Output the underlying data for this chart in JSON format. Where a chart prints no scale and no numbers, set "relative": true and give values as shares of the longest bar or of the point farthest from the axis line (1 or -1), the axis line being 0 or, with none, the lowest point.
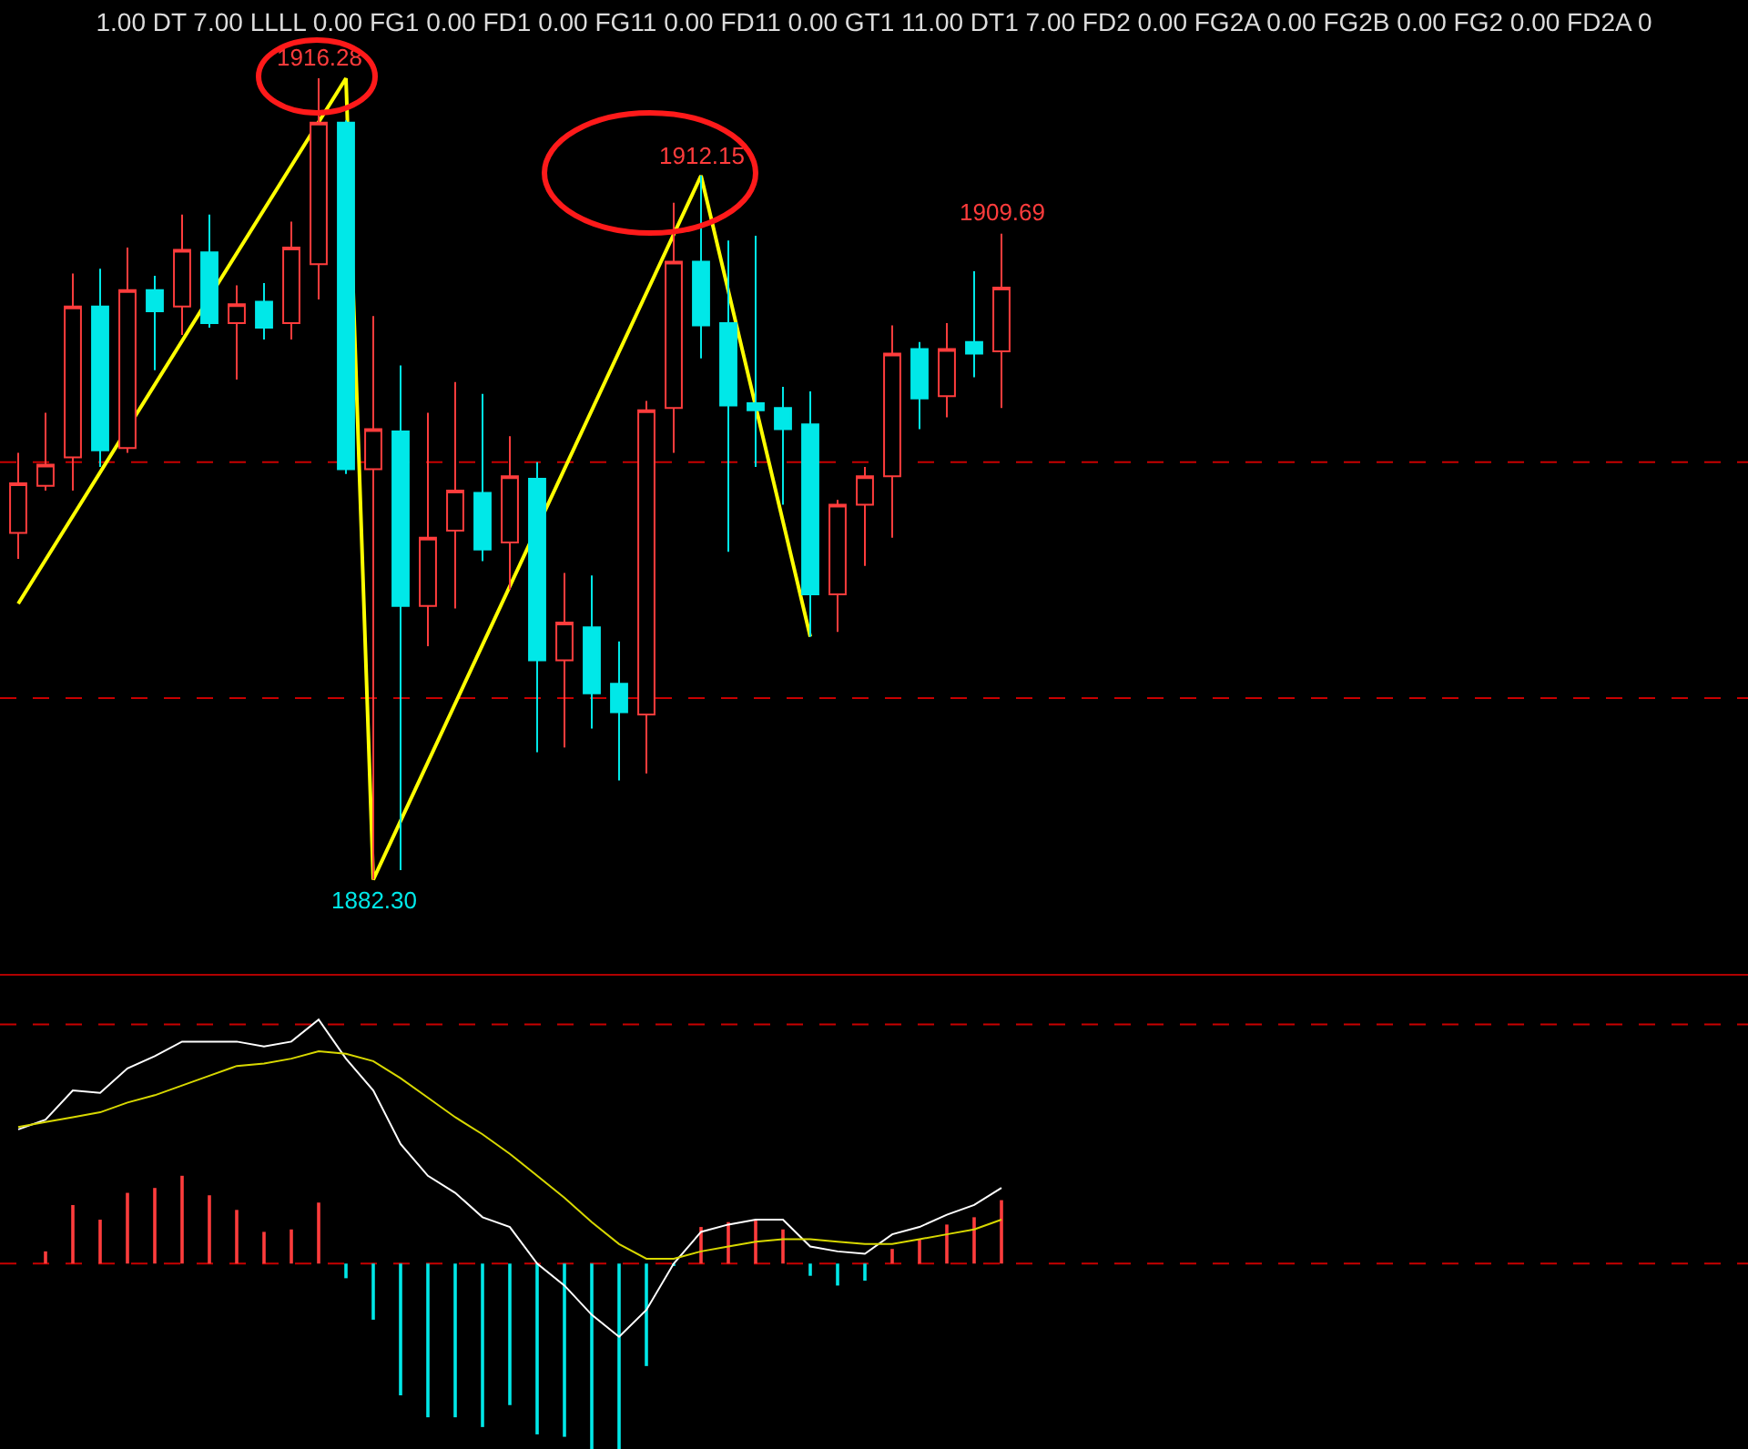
{
  "chart_data": [
    {
      "type": "candlestick",
      "title": "1.00 DT 7.00 LLLL 0.00 FG1 0.00 FD1 0.00 FG11 0.00 FD11 0.00 GT1 11.00 DT1 7.00 FD2 0.00 FG2A 0.00 FG2B 0.00 FG2 0.00 FD2A 0",
      "categories": [
        null,
        null,
        null,
        null,
        null,
        null,
        null,
        null,
        null,
        null,
        null,
        null,
        null,
        null,
        null,
        null,
        null,
        null,
        null,
        null,
        null,
        null,
        null,
        null,
        null,
        null,
        null,
        null,
        null,
        null,
        null,
        null,
        null,
        null,
        null,
        null,
        null
      ],
      "ohlc": [
        [
          1897.0,
          1900.4,
          1895.9,
          1899.1
        ],
        [
          1899.0,
          1902.1,
          1898.8,
          1899.9
        ],
        [
          1900.2,
          1908.0,
          1898.8,
          1906.6
        ],
        [
          1906.6,
          1908.2,
          1899.8,
          1900.5
        ],
        [
          1900.6,
          1909.1,
          1900.4,
          1907.3
        ],
        [
          1907.3,
          1907.9,
          1903.9,
          1906.4
        ],
        [
          1906.6,
          1910.5,
          1905.4,
          1909.0
        ],
        [
          1908.9,
          1910.5,
          1905.7,
          1905.9
        ],
        [
          1905.9,
          1907.5,
          1903.5,
          1906.7
        ],
        [
          1906.8,
          1907.6,
          1905.2,
          1905.7
        ],
        [
          1905.9,
          1910.2,
          1905.2,
          1909.1
        ],
        [
          1908.4,
          1916.28,
          1906.9,
          1914.4
        ],
        [
          1914.4,
          1914.5,
          1899.5,
          1899.7
        ],
        [
          1899.7,
          1906.2,
          1882.3,
          1901.4
        ],
        [
          1901.3,
          1904.1,
          1882.7,
          1893.9
        ],
        [
          1893.9,
          1902.1,
          1892.2,
          1896.8
        ],
        [
          1897.1,
          1903.4,
          1893.8,
          1898.8
        ],
        [
          1898.7,
          1902.9,
          1895.8,
          1896.3
        ],
        [
          1896.6,
          1901.1,
          1894.6,
          1899.4
        ],
        [
          1899.3,
          1900.0,
          1887.7,
          1891.6
        ],
        [
          1891.6,
          1895.3,
          1887.9,
          1893.2
        ],
        [
          1893.0,
          1895.2,
          1888.7,
          1890.2
        ],
        [
          1890.6,
          1892.4,
          1886.5,
          1889.4
        ],
        [
          1889.3,
          1902.6,
          1886.8,
          1902.2
        ],
        [
          1902.3,
          1911.0,
          1900.4,
          1908.5
        ],
        [
          1908.5,
          1912.15,
          1904.4,
          1905.8
        ],
        [
          1905.9,
          1909.4,
          1896.2,
          1902.4
        ],
        [
          1902.5,
          1909.6,
          1899.8,
          1902.2
        ],
        [
          1902.3,
          1903.2,
          1898.2,
          1901.4
        ],
        [
          1901.6,
          1903.0,
          1892.6,
          1894.4
        ],
        [
          1894.4,
          1898.4,
          1892.8,
          1898.2
        ],
        [
          1898.2,
          1899.8,
          1895.6,
          1899.4
        ],
        [
          1899.4,
          1905.8,
          1896.8,
          1904.6
        ],
        [
          1904.8,
          1905.1,
          1901.4,
          1902.7
        ],
        [
          1902.8,
          1905.9,
          1901.9,
          1904.8
        ],
        [
          1905.1,
          1908.1,
          1903.6,
          1904.6
        ],
        [
          1904.7,
          1909.69,
          1902.3,
          1907.4
        ]
      ],
      "colors": [
        "#ff3c3c",
        "#ff3c3c",
        "#ff3c3c",
        "#00e8e8",
        "#ff3c3c",
        "#00e8e8",
        "#ff3c3c",
        "#00e8e8",
        "#ff3c3c",
        "#00e8e8",
        "#ff3c3c",
        "#ff3c3c",
        "#00e8e8",
        "#ff3c3c",
        "#00e8e8",
        "#ff3c3c",
        "#ff3c3c",
        "#00e8e8",
        "#ff3c3c",
        "#00e8e8",
        "#ff3c3c",
        "#00e8e8",
        "#00e8e8",
        "#ff3c3c",
        "#ff3c3c",
        "#00e8e8",
        "#00e8e8",
        "#00e8e8",
        "#00e8e8",
        "#00e8e8",
        "#ff3c3c",
        "#ff3c3c",
        "#ff3c3c",
        "#00e8e8",
        "#ff3c3c",
        "#00e8e8",
        "#ff3c3c"
      ],
      "series": [
        {
          "type": "line",
          "color": "#ffff00",
          "values": [
            1894.0,
            null,
            null,
            null,
            null,
            null,
            null,
            null,
            null,
            null,
            null,
            null,
            1916.28,
            1882.3,
            null,
            null,
            null,
            null,
            null,
            null,
            null,
            null,
            null,
            null,
            null,
            1912.15,
            null,
            null,
            null,
            1892.6,
            null,
            null,
            null,
            null,
            null,
            null,
            null
          ]
        }
      ],
      "ylim": [
        1878.3,
        1919.6
      ],
      "tick_labels": false,
      "ref_lines": [
        {
          "axis": "y",
          "value": 1900,
          "color": "#c80000",
          "line_style": "dashed"
        },
        {
          "axis": "y",
          "value": 1890,
          "color": "#c80000",
          "line_style": "dashed"
        }
      ],
      "annotations": [
        {
          "text": "1916.28",
          "y": 1916.28
        },
        {
          "text": "1882.30",
          "y": 1882.3
        },
        {
          "text": "1912.15",
          "y": 1912.15
        },
        {
          "text": "1909.69",
          "y": 1909.69
        }
      ]
    },
    {
      "type": "bar",
      "relative": true,
      "categories": [
        null,
        null,
        null,
        null,
        null,
        null,
        null,
        null,
        null,
        null,
        null,
        null,
        null,
        null,
        null,
        null,
        null,
        null,
        null,
        null,
        null,
        null,
        null,
        null,
        null,
        null,
        null,
        null,
        null,
        null,
        null,
        null,
        null,
        null,
        null,
        null,
        null
      ],
      "series": [
        {
          "type": "bar",
          "colors": [
            "#ff3c3c",
            "#ff3c3c",
            "#ff3c3c",
            "#ff3c3c",
            "#ff3c3c",
            "#ff3c3c",
            "#ff3c3c",
            "#ff3c3c",
            "#ff3c3c",
            "#ff3c3c",
            "#ff3c3c",
            "#ff3c3c",
            "#00e8e8",
            "#00e8e8",
            "#00e8e8",
            "#00e8e8",
            "#00e8e8",
            "#00e8e8",
            "#00e8e8",
            "#00e8e8",
            "#00e8e8",
            "#00e8e8",
            "#00e8e8",
            "#00e8e8",
            "#00e8e8",
            "#ff3c3c",
            "#ff3c3c",
            "#ff3c3c",
            "#ff3c3c",
            "#00e8e8",
            "#00e8e8",
            "#00e8e8",
            "#ff3c3c",
            "#ff3c3c",
            "#ff3c3c",
            "#ff3c3c",
            "#ff3c3c"
          ],
          "values": [
            null,
            0.05,
            0.24,
            0.18,
            0.29,
            0.31,
            0.36,
            0.28,
            0.22,
            0.13,
            0.14,
            0.25,
            -0.06,
            -0.23,
            -0.54,
            -0.63,
            -0.63,
            -0.67,
            -0.58,
            -0.7,
            -0.71,
            -0.76,
            -0.76,
            -0.42,
            -0.01,
            0.15,
            0.17,
            0.18,
            0.14,
            -0.05,
            -0.09,
            -0.07,
            0.06,
            0.1,
            0.16,
            0.19,
            0.26
          ]
        },
        {
          "type": "line",
          "color": "#ffffff",
          "values": [
            0.55,
            0.59,
            0.71,
            0.7,
            0.8,
            0.85,
            0.91,
            0.91,
            0.91,
            0.89,
            0.91,
            1.0,
            0.84,
            0.71,
            0.49,
            0.36,
            0.29,
            0.19,
            0.15,
            0.0,
            -0.09,
            -0.21,
            -0.3,
            -0.19,
            0.0,
            0.13,
            0.16,
            0.18,
            0.18,
            0.07,
            0.05,
            0.04,
            0.12,
            0.15,
            0.2,
            0.24,
            0.31
          ]
        },
        {
          "type": "line",
          "color": "#d8d800",
          "values": [
            0.56,
            0.58,
            0.6,
            0.62,
            0.66,
            0.69,
            0.73,
            0.77,
            0.81,
            0.82,
            0.84,
            0.87,
            0.86,
            0.83,
            0.76,
            0.68,
            0.6,
            0.53,
            0.45,
            0.36,
            0.27,
            0.17,
            0.08,
            0.02,
            0.02,
            0.05,
            0.07,
            0.09,
            0.1,
            0.1,
            0.09,
            0.08,
            0.08,
            0.1,
            0.12,
            0.14,
            0.18
          ]
        }
      ],
      "tick_labels": false,
      "ref_lines": [
        {
          "axis": "y",
          "value": 0.98,
          "color": "#c80000",
          "line_style": "dashed"
        },
        {
          "axis": "y",
          "value": 0,
          "color": "#c80000",
          "line_style": "dashed"
        }
      ]
    }
  ]
}
